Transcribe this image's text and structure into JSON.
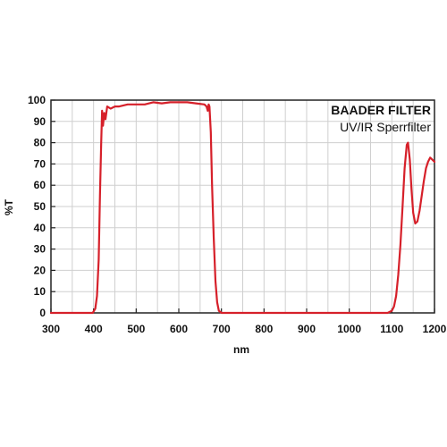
{
  "chart_data": {
    "type": "line",
    "title": "BAADER FILTER",
    "subtitle": "UV/IR Sperrfilter",
    "xlabel": "nm",
    "ylabel": "%T",
    "xlim": [
      300,
      1200
    ],
    "ylim": [
      0,
      100
    ],
    "x_ticks": [
      300,
      400,
      500,
      600,
      700,
      800,
      900,
      1000,
      1100,
      1200
    ],
    "y_ticks": [
      0,
      10,
      20,
      30,
      40,
      50,
      60,
      70,
      80,
      90,
      100
    ],
    "grid": true,
    "line_color": "#d6202a",
    "series": [
      {
        "x": [
          300,
          398,
          404,
          408,
          412,
          415,
          418,
          420,
          422,
          425,
          428,
          432,
          440,
          450,
          460,
          480,
          500,
          520,
          540,
          560,
          580,
          600,
          620,
          640,
          660,
          665,
          668,
          670,
          672,
          675,
          678,
          682,
          686,
          690,
          694,
          700,
          710,
          800,
          900,
          1000,
          1090,
          1100,
          1105,
          1110,
          1115,
          1120,
          1125,
          1130,
          1135,
          1138,
          1142,
          1146,
          1150,
          1155,
          1160,
          1165,
          1170,
          1175,
          1180,
          1185,
          1190,
          1195,
          1200
        ],
        "y": [
          0,
          0,
          2,
          8,
          25,
          55,
          80,
          95,
          88,
          94,
          91,
          97,
          96,
          97,
          97,
          98,
          98,
          98,
          99,
          98.5,
          99,
          99,
          99,
          98.5,
          98,
          97,
          95,
          98,
          97,
          85,
          60,
          35,
          15,
          5,
          1,
          0,
          0,
          0,
          0,
          0,
          0,
          1,
          3,
          8,
          18,
          32,
          50,
          68,
          79,
          80,
          72,
          58,
          47,
          42,
          43,
          48,
          55,
          62,
          68,
          71,
          73,
          72,
          71
        ]
      }
    ]
  }
}
